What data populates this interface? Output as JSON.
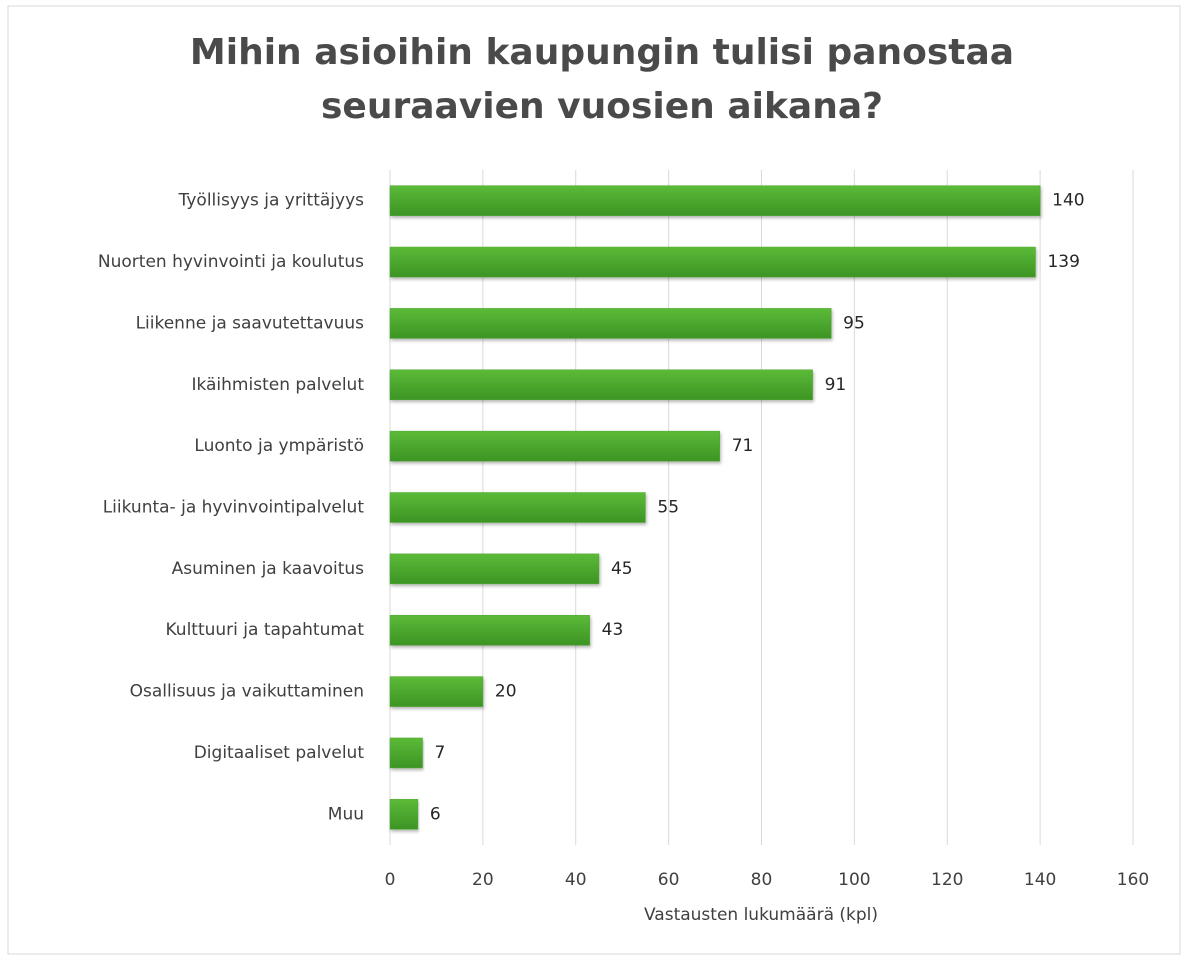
{
  "chart_data": {
    "type": "barh",
    "title": [
      "Mihin asioihin kaupungin tulisi panostaa",
      "seuraavien vuosien aikana?"
    ],
    "categories": [
      "Työllisyys ja yrittäjyys",
      "Nuorten hyvinvointi ja koulutus",
      "Liikenne ja saavutettavuus",
      "Ikäihmisten palvelut",
      "Luonto ja ympäristö",
      "Liikunta- ja hyvinvointipalvelut",
      "Asuminen ja kaavoitus",
      "Kulttuuri ja tapahtumat",
      "Osallisuus ja vaikuttaminen",
      "Digitaaliset palvelut",
      "Muu"
    ],
    "values": [
      140,
      139,
      95,
      91,
      71,
      55,
      45,
      43,
      20,
      7,
      6
    ],
    "color": "#4ea72e",
    "xlabel": "Vastausten lukumäärä (kpl)",
    "xlim": [
      0,
      160
    ],
    "xticks": [
      0,
      20,
      40,
      60,
      80,
      100,
      120,
      140,
      160
    ],
    "grid": true
  }
}
